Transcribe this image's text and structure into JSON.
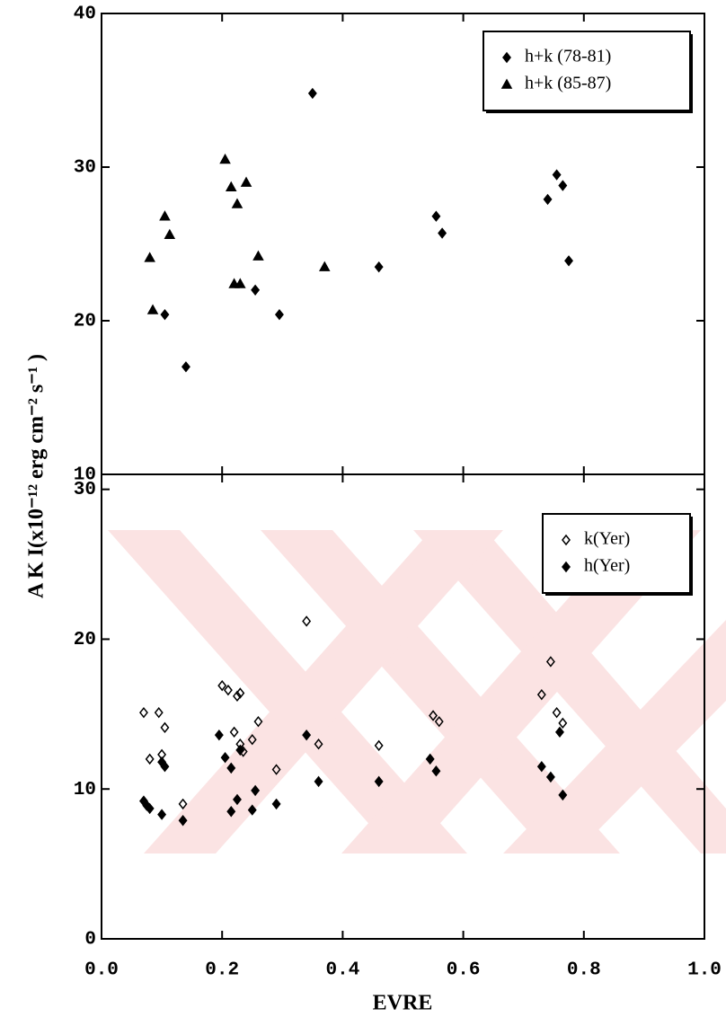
{
  "chart_data": [
    {
      "type": "scatter",
      "ylabel": "A K I(x10⁻¹² erg cm⁻² s⁻¹ )",
      "xlim": [
        0,
        1
      ],
      "ylim": [
        10,
        40
      ],
      "yticks": [
        10,
        20,
        30,
        40
      ],
      "legend": "upper right",
      "series": [
        {
          "name": "h+k (78-81)",
          "color": "#000000",
          "marker": "diamond",
          "filled": true,
          "x": [
            0.35,
            0.14,
            0.105,
            0.255,
            0.295,
            0.46,
            0.555,
            0.565,
            0.74,
            0.755,
            0.765,
            0.775
          ],
          "values": [
            34.8,
            17.0,
            20.4,
            22.0,
            20.4,
            23.5,
            26.8,
            25.7,
            27.9,
            29.5,
            28.8,
            23.9
          ]
        },
        {
          "name": "h+k (85-87)",
          "color": "#000000",
          "marker": "triangle",
          "filled": true,
          "x": [
            0.08,
            0.085,
            0.105,
            0.113,
            0.205,
            0.215,
            0.225,
            0.24,
            0.22,
            0.23,
            0.26,
            0.37
          ],
          "values": [
            24.1,
            20.7,
            26.8,
            25.6,
            30.5,
            28.7,
            27.6,
            29.0,
            22.4,
            22.4,
            24.2,
            23.5
          ]
        }
      ]
    },
    {
      "type": "scatter",
      "xlabel": "EVRE",
      "xlim": [
        0,
        1
      ],
      "ylim": [
        0,
        31
      ],
      "yticks": [
        0,
        10,
        20,
        30
      ],
      "xticks": [
        {
          "value": 0,
          "label": "0.0"
        },
        {
          "value": 0.2,
          "label": "0.2"
        },
        {
          "value": 0.4,
          "label": "0.4"
        },
        {
          "value": 0.6,
          "label": "0.6"
        },
        {
          "value": 0.8,
          "label": "0.8"
        },
        {
          "value": 1,
          "label": "1.0"
        }
      ],
      "legend": "upper right",
      "series": [
        {
          "name": "k(Yer)",
          "color": "#000000",
          "marker": "diamond",
          "filled": false,
          "x": [
            0.07,
            0.08,
            0.095,
            0.1,
            0.105,
            0.135,
            0.2,
            0.21,
            0.22,
            0.225,
            0.23,
            0.23,
            0.235,
            0.25,
            0.26,
            0.29,
            0.34,
            0.36,
            0.46,
            0.55,
            0.56,
            0.73,
            0.745,
            0.755,
            0.765
          ],
          "values": [
            15.1,
            12.0,
            15.1,
            12.3,
            14.1,
            9.0,
            16.9,
            16.6,
            13.8,
            16.2,
            16.4,
            13.0,
            12.5,
            13.3,
            14.5,
            11.3,
            21.2,
            13.0,
            12.9,
            14.9,
            14.5,
            16.3,
            18.5,
            15.1,
            14.4
          ]
        },
        {
          "name": "h(Yer)",
          "color": "#000000",
          "marker": "diamond",
          "filled": true,
          "x": [
            0.07,
            0.075,
            0.08,
            0.1,
            0.105,
            0.1,
            0.135,
            0.195,
            0.205,
            0.215,
            0.215,
            0.225,
            0.23,
            0.25,
            0.255,
            0.29,
            0.34,
            0.36,
            0.46,
            0.545,
            0.555,
            0.73,
            0.745,
            0.76,
            0.765
          ],
          "values": [
            9.2,
            8.9,
            8.7,
            11.8,
            11.5,
            8.3,
            7.9,
            13.6,
            12.1,
            8.5,
            11.4,
            9.3,
            12.6,
            8.6,
            9.9,
            9.0,
            13.6,
            10.5,
            10.5,
            12.0,
            11.2,
            11.5,
            10.8,
            13.8,
            9.6
          ]
        }
      ]
    }
  ]
}
